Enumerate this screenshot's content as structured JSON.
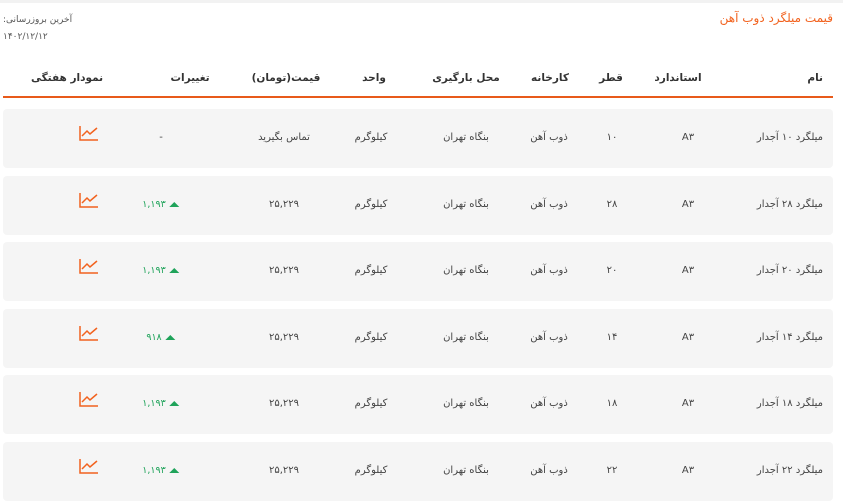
{
  "title": "قیمت میلگرد ذوب آهن",
  "last_update_label": "آخرین بروزرسانی:",
  "last_update_date": "۱۴۰۲/۱۲/۱۲",
  "columns": {
    "name": "نام",
    "standard": "استاندارد",
    "diameter": "قطر",
    "factory": "کارخانه",
    "location": "محل بارگیری",
    "unit": "واحد",
    "price": "قیمت(تومان)",
    "changes": "تغییرات",
    "chart": "نمودار هفتگی"
  },
  "accent": "#f2621e",
  "up_color": "#1fa35a",
  "rows": [
    {
      "name": "میلگرد ۱۰ آجدار",
      "standard": "A۳",
      "diameter": "۱۰",
      "factory": "ذوب آهن",
      "location": "بنگاه تهران",
      "unit": "کیلوگرم",
      "price": "تماس بگیرید",
      "change": "-",
      "up": false
    },
    {
      "name": "میلگرد ۲۸ آجدار",
      "standard": "A۳",
      "diameter": "۲۸",
      "factory": "ذوب آهن",
      "location": "بنگاه تهران",
      "unit": "کیلوگرم",
      "price": "۲۵,۲۲۹",
      "change": "۱,۱۹۳",
      "up": true
    },
    {
      "name": "میلگرد ۲۰ آجدار",
      "standard": "A۳",
      "diameter": "۲۰",
      "factory": "ذوب آهن",
      "location": "بنگاه تهران",
      "unit": "کیلوگرم",
      "price": "۲۵,۲۲۹",
      "change": "۱,۱۹۳",
      "up": true
    },
    {
      "name": "میلگرد ۱۴ آجدار",
      "standard": "A۳",
      "diameter": "۱۴",
      "factory": "ذوب آهن",
      "location": "بنگاه تهران",
      "unit": "کیلوگرم",
      "price": "۲۵,۲۲۹",
      "change": "۹۱۸",
      "up": true
    },
    {
      "name": "میلگرد ۱۸ آجدار",
      "standard": "A۳",
      "diameter": "۱۸",
      "factory": "ذوب آهن",
      "location": "بنگاه تهران",
      "unit": "کیلوگرم",
      "price": "۲۵,۲۲۹",
      "change": "۱,۱۹۳",
      "up": true
    },
    {
      "name": "میلگرد ۲۲ آجدار",
      "standard": "A۳",
      "diameter": "۲۲",
      "factory": "ذوب آهن",
      "location": "بنگاه تهران",
      "unit": "کیلوگرم",
      "price": "۲۵,۲۲۹",
      "change": "۱,۱۹۳",
      "up": true
    }
  ]
}
